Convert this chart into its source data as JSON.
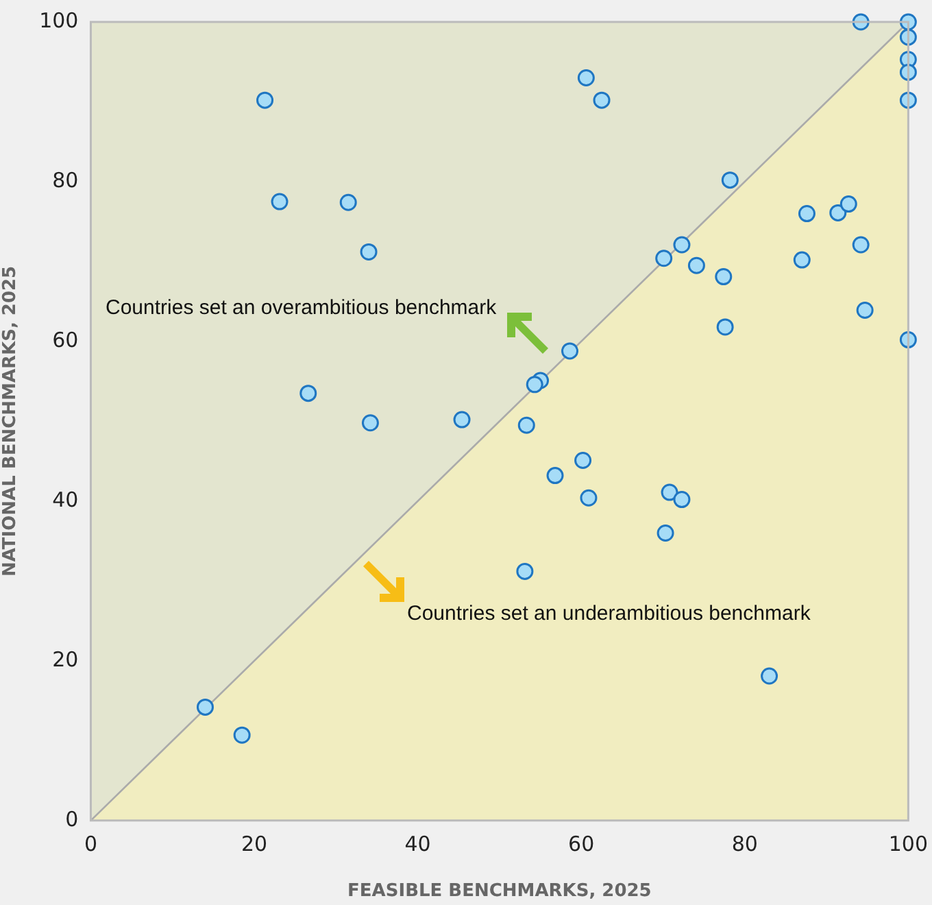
{
  "chart_data": {
    "type": "scatter",
    "xlabel": "FEASIBLE BENCHMARKS, 2025",
    "ylabel": "NATIONAL BENCHMARKS, 2025",
    "xlim": [
      0,
      100
    ],
    "ylim": [
      0,
      100
    ],
    "xticks": [
      0,
      20,
      40,
      60,
      80,
      100
    ],
    "yticks": [
      0,
      20,
      40,
      60,
      80,
      100
    ],
    "grid": false,
    "legend": false,
    "marker": "circle",
    "annotations": [
      "Countries set an overambitious benchmark",
      "Countries set an underambitious benchmark"
    ],
    "series": [
      {
        "type": "area",
        "marker": "none",
        "color": "#f1edc0",
        "x": [
          0,
          100
        ],
        "values": [
          0,
          100
        ]
      },
      {
        "color": "#a6dcf7",
        "x": [
          21.3,
          23.1,
          31.5,
          34.0,
          26.6,
          34.2,
          45.4,
          14.0,
          18.5,
          60.6,
          62.5,
          94.2,
          100,
          100,
          100,
          100,
          100,
          78.2,
          87.6,
          91.4,
          92.7,
          87.0,
          94.2,
          94.7,
          100,
          72.3,
          70.1,
          74.1,
          77.4,
          77.6,
          58.6,
          55.0,
          54.3,
          53.3,
          60.2,
          56.8,
          60.9,
          70.8,
          72.3,
          70.3,
          53.1,
          83.0
        ],
        "values": [
          90.2,
          77.5,
          77.4,
          71.2,
          53.5,
          49.8,
          50.2,
          14.2,
          10.7,
          93.0,
          90.2,
          100,
          100,
          98.1,
          95.3,
          93.7,
          90.2,
          80.2,
          76.0,
          76.1,
          77.2,
          70.2,
          72.1,
          63.9,
          60.2,
          72.1,
          70.4,
          69.5,
          68.1,
          61.8,
          58.8,
          55.1,
          54.6,
          49.5,
          45.1,
          43.2,
          40.4,
          41.1,
          40.2,
          36.0,
          31.2,
          18.1
        ]
      }
    ]
  }
}
